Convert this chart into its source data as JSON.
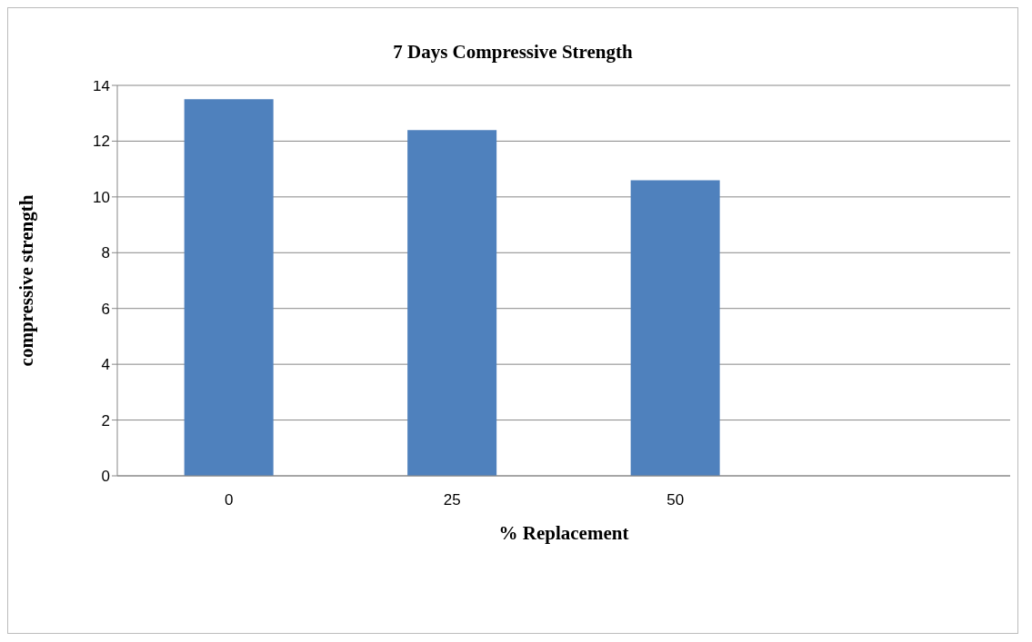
{
  "chart_data": {
    "type": "bar",
    "title": "7 Days Compressive Strength",
    "xlabel": "%  Replacement",
    "ylabel": "compressive strength",
    "categories": [
      "0",
      "25",
      "50",
      null
    ],
    "values": [
      13.5,
      12.4,
      10.6,
      null
    ],
    "color": "#4f81bd",
    "ylim": [
      0,
      14
    ],
    "yticks": [
      0,
      2,
      4,
      6,
      8,
      10,
      12,
      14
    ],
    "grid": "y"
  }
}
